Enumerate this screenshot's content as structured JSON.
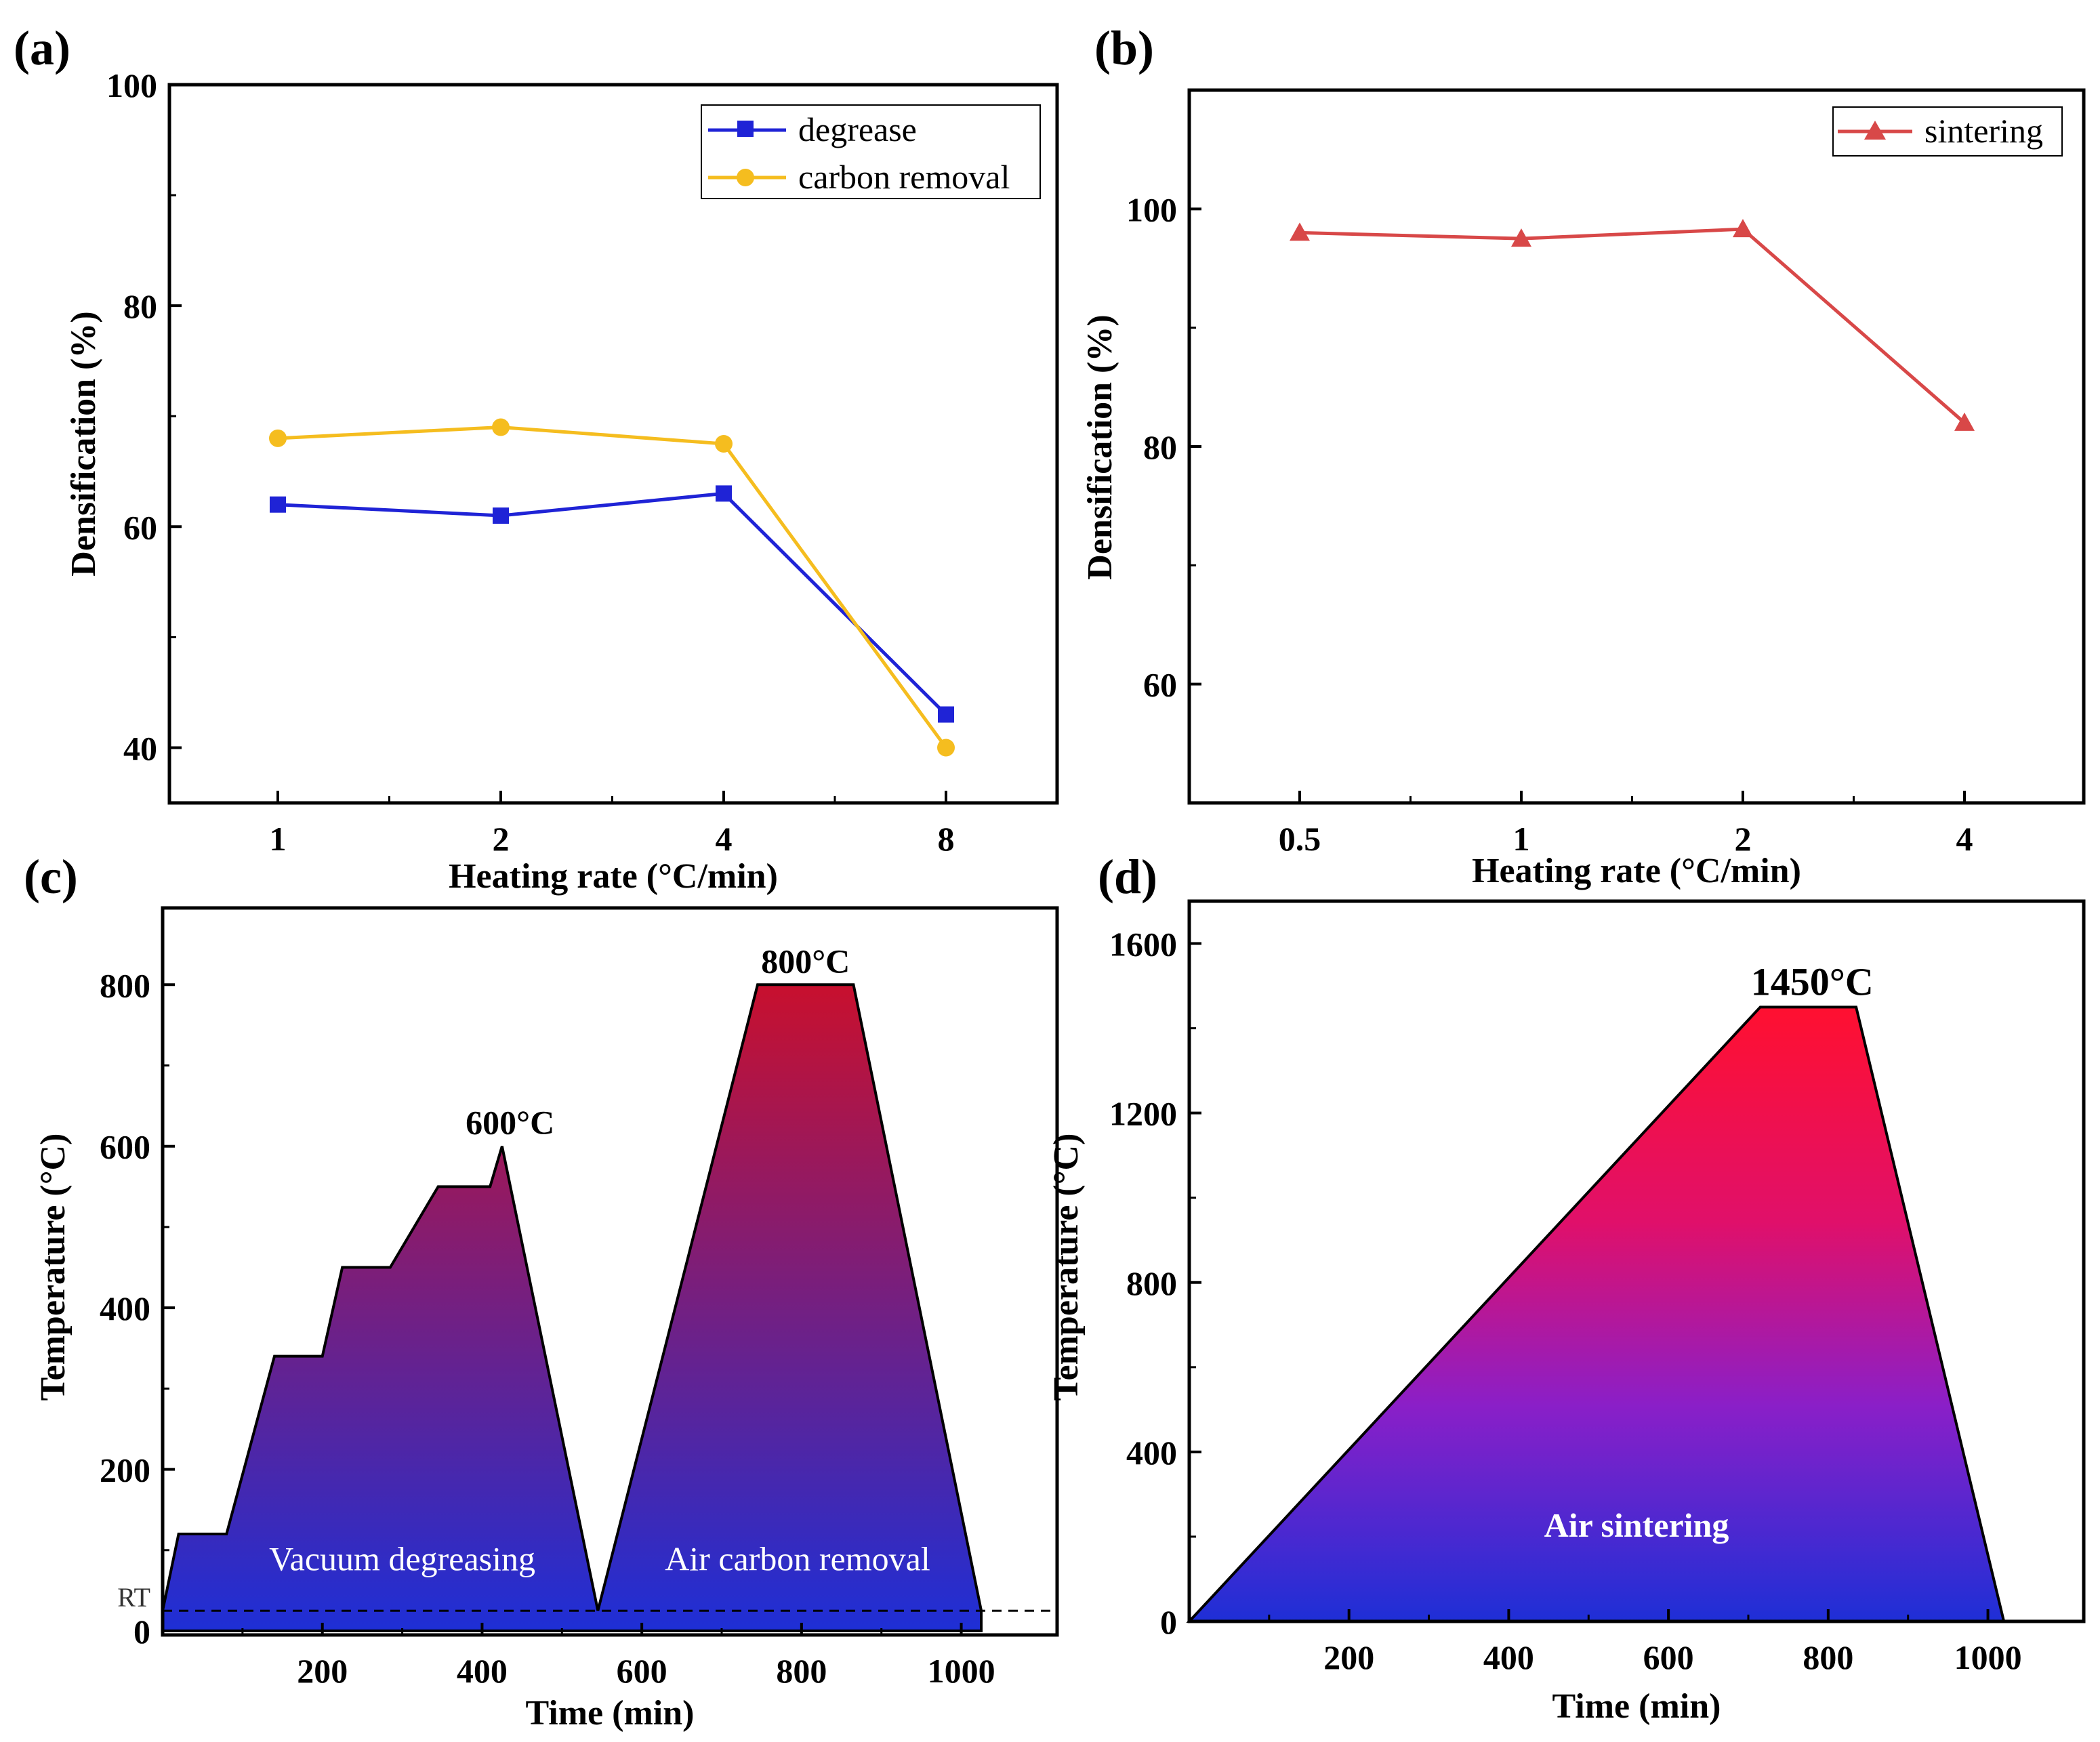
{
  "colors": {
    "degrease": "#1f23d6",
    "carbon": "#f5bd1f",
    "sintering": "#d84848",
    "grad_top_c": "#c8102e",
    "grad_bottom": "#1e2fd6",
    "grad_top_d": "#ff1030",
    "grad_mid_d": "#e0106a",
    "grad_low_d": "#8a1fc8"
  },
  "chart_data": [
    {
      "panel": "(a)",
      "type": "line",
      "xlabel": "Heating rate (°C/min)",
      "ylabel": "Densification (%)",
      "categories": [
        "1",
        "2",
        "4",
        "8"
      ],
      "ylim": [
        35,
        100
      ],
      "yticks": [
        "40",
        "60",
        "80",
        "100"
      ],
      "legend_position": "top-right",
      "series": [
        {
          "name": "degrease",
          "marker": "square",
          "values": [
            62,
            61,
            63,
            43
          ]
        },
        {
          "name": "carbon removal",
          "marker": "circle",
          "values": [
            68,
            69,
            67.5,
            40
          ]
        }
      ]
    },
    {
      "panel": "(b)",
      "type": "line",
      "xlabel": "Heating rate (°C/min)",
      "ylabel": "Densification (%)",
      "categories": [
        "0.5",
        "1",
        "2",
        "4"
      ],
      "ylim": [
        50,
        110
      ],
      "yticks": [
        "60",
        "80",
        "100"
      ],
      "legend_position": "top-right",
      "series": [
        {
          "name": "sintering",
          "marker": "triangle",
          "values": [
            98,
            97.5,
            98.3,
            82
          ]
        }
      ]
    },
    {
      "panel": "(c)",
      "type": "area",
      "xlabel": "Time (min)",
      "ylabel": "Temperature (°C)",
      "xlim": [
        0,
        1120
      ],
      "ylim": [
        -5,
        895
      ],
      "xticks": [
        "200",
        "400",
        "600",
        "800",
        "1000"
      ],
      "yticks": [
        "0",
        "200",
        "400",
        "600",
        "800"
      ],
      "rt_label": "RT",
      "rt_value": 25,
      "x": [
        0,
        20,
        80,
        140,
        200,
        225,
        285,
        345,
        410,
        425,
        545,
        745,
        865,
        1025
      ],
      "y": [
        25,
        120,
        120,
        340,
        340,
        450,
        450,
        550,
        550,
        600,
        25,
        800,
        800,
        25
      ],
      "annotations": [
        {
          "text": "600°C",
          "x": 435,
          "y": 600
        },
        {
          "text": "800°C",
          "x": 805,
          "y": 800
        },
        {
          "text": "Vacuum degreasing",
          "x": 300,
          "y": 75
        },
        {
          "text": "Air carbon removal",
          "x": 795,
          "y": 75
        }
      ]
    },
    {
      "panel": "(d)",
      "type": "area",
      "xlabel": "Time (min)",
      "ylabel": "Temperature (°C)",
      "xlim": [
        0,
        1120
      ],
      "ylim": [
        0,
        1700
      ],
      "xticks": [
        "200",
        "400",
        "600",
        "800",
        "1000"
      ],
      "yticks": [
        "0",
        "400",
        "800",
        "1200",
        "1600"
      ],
      "x": [
        0,
        715,
        835,
        1020
      ],
      "y": [
        0,
        1450,
        1450,
        0
      ],
      "annotations": [
        {
          "text": "1450°C",
          "x": 780,
          "y": 1450
        },
        {
          "text": "Air sintering",
          "x": 560,
          "y": 200
        }
      ]
    }
  ]
}
